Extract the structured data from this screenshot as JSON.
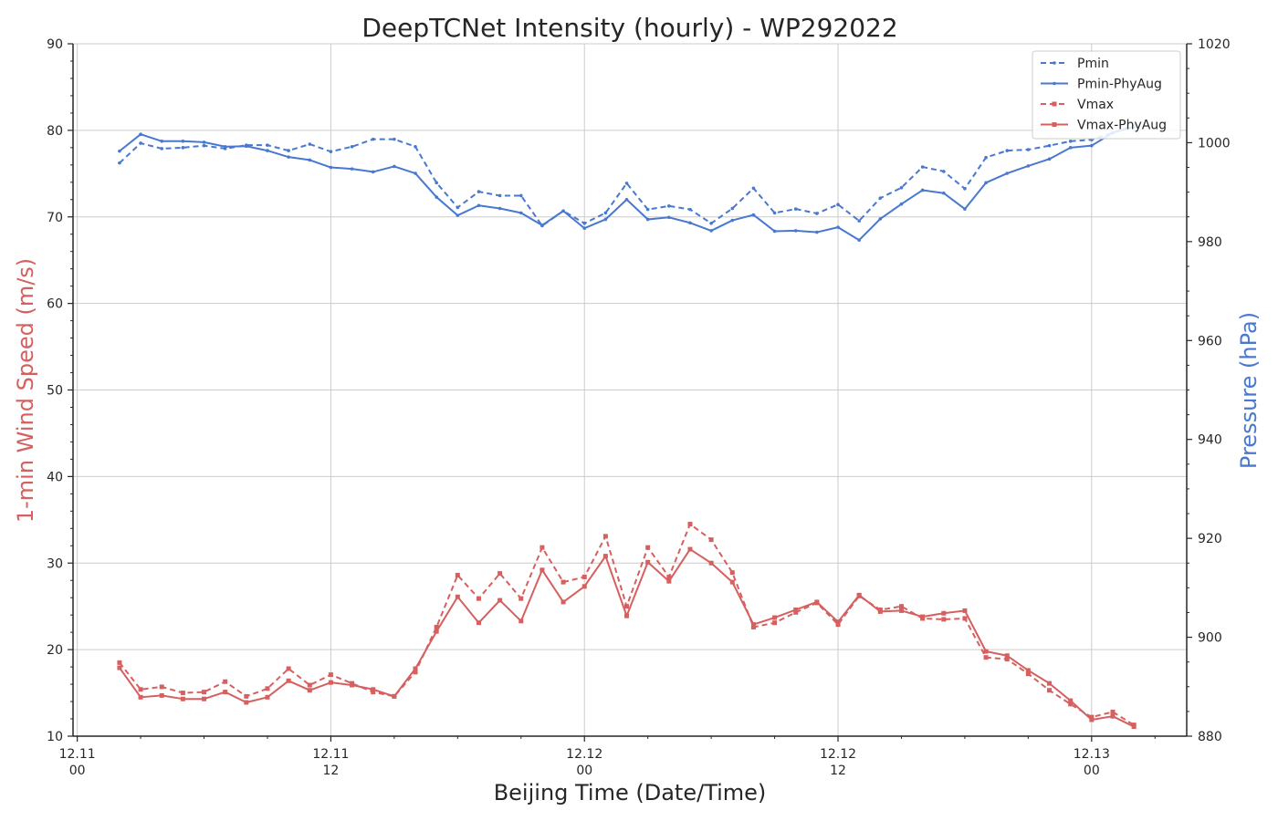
{
  "chart_data": {
    "type": "line",
    "title": "DeepTCNet Intensity (hourly) - WP292022",
    "xlabel": "Beijing Time (Date/Time)",
    "ylabel_left": "1-min Wind Speed (m/s)",
    "ylabel_right": "Pressure (hPa)",
    "ylim_left": [
      10,
      90
    ],
    "ylim_right": [
      880,
      1020
    ],
    "xlim_hours": [
      -0.2,
      52.5
    ],
    "x_tick_labels": [
      {
        "hour": 0,
        "date": "12.11",
        "time": "00"
      },
      {
        "hour": 12,
        "date": "12.11",
        "time": "12"
      },
      {
        "hour": 24,
        "date": "12.12",
        "time": "00"
      },
      {
        "hour": 36,
        "date": "12.12",
        "time": "12"
      },
      {
        "hour": 48,
        "date": "12.13",
        "time": "00"
      }
    ],
    "y_ticks_left": [
      10,
      20,
      30,
      40,
      50,
      60,
      70,
      80,
      90
    ],
    "y_ticks_right": [
      880,
      900,
      920,
      940,
      960,
      980,
      1000,
      1020
    ],
    "grid": true,
    "legend_position": "top-right",
    "colors": {
      "pressure": "#4878cf",
      "wind": "#d65f5f",
      "axis": "#262626",
      "grid": "#cccccc"
    },
    "x_hours": [
      2,
      3,
      4,
      5,
      6,
      7,
      8,
      9,
      10,
      11,
      12,
      13,
      14,
      15,
      16,
      17,
      18,
      19,
      20,
      21,
      22,
      23,
      24,
      25,
      26,
      27,
      28,
      29,
      30,
      31,
      32,
      33,
      34,
      35,
      36,
      37,
      38,
      39,
      40,
      41,
      42,
      43,
      44,
      45,
      46,
      47,
      48,
      49,
      50
    ],
    "series": [
      {
        "name": "Pmin",
        "axis": "right",
        "style": "dashed",
        "color": "#4878cf",
        "values": [
          995.9,
          999.9,
          998.8,
          999.0,
          999.4,
          998.8,
          999.5,
          999.5,
          998.4,
          999.7,
          998.2,
          999.2,
          1000.7,
          1000.7,
          999.2,
          991.9,
          986.9,
          990.1,
          989.3,
          989.3,
          983.2,
          986.2,
          983.7,
          985.8,
          991.8,
          986.5,
          987.2,
          986.5,
          983.7,
          986.7,
          990.8,
          985.8,
          986.6,
          985.7,
          987.5,
          984.2,
          988.8,
          990.9,
          995.1,
          994.2,
          990.7,
          997.0,
          998.4,
          998.6,
          999.4,
          1000.3,
          1000.6,
          1002.0,
          1003.5
        ]
      },
      {
        "name": "Pmin-PhyAug",
        "axis": "right",
        "style": "solid",
        "color": "#4878cf",
        "values": [
          998.3,
          1001.7,
          1000.3,
          1000.3,
          1000.1,
          999.2,
          999.3,
          998.4,
          997.1,
          996.5,
          995.0,
          994.7,
          994.1,
          995.2,
          993.8,
          989.0,
          985.3,
          987.3,
          986.7,
          985.8,
          983.3,
          986.2,
          982.7,
          984.5,
          988.5,
          984.5,
          984.9,
          983.8,
          982.2,
          984.3,
          985.4,
          982.1,
          982.2,
          981.9,
          982.9,
          980.3,
          984.6,
          987.6,
          990.4,
          989.8,
          986.6,
          991.9,
          993.8,
          995.3,
          996.7,
          999.0,
          999.4,
          1002.0,
          1003.2
        ]
      },
      {
        "name": "Vmax",
        "axis": "left",
        "style": "dashed",
        "color": "#d65f5f",
        "values": [
          18.5,
          15.4,
          15.7,
          15.0,
          15.1,
          16.3,
          14.6,
          15.5,
          17.8,
          15.9,
          17.1,
          16.1,
          15.1,
          14.6,
          17.4,
          22.6,
          28.6,
          25.9,
          28.8,
          25.9,
          31.8,
          27.8,
          28.4,
          33.1,
          25.0,
          31.8,
          28.4,
          34.5,
          32.7,
          28.9,
          22.6,
          23.1,
          24.3,
          25.4,
          22.9,
          26.2,
          24.6,
          25.0,
          23.6,
          23.5,
          23.6,
          19.1,
          18.9,
          17.2,
          15.3,
          13.7,
          12.2,
          12.8,
          11.3
        ]
      },
      {
        "name": "Vmax-PhyAug",
        "axis": "left",
        "style": "solid",
        "color": "#d65f5f",
        "values": [
          17.9,
          14.5,
          14.7,
          14.3,
          14.3,
          15.1,
          13.9,
          14.5,
          16.4,
          15.3,
          16.2,
          15.9,
          15.4,
          14.6,
          17.8,
          22.1,
          26.1,
          23.1,
          25.7,
          23.3,
          29.2,
          25.5,
          27.3,
          30.8,
          23.9,
          30.1,
          27.9,
          31.6,
          30.0,
          27.8,
          22.9,
          23.7,
          24.6,
          25.5,
          23.2,
          26.3,
          24.4,
          24.5,
          23.8,
          24.2,
          24.5,
          19.8,
          19.3,
          17.6,
          16.1,
          14.1,
          11.9,
          12.3,
          11.1
        ]
      }
    ]
  }
}
